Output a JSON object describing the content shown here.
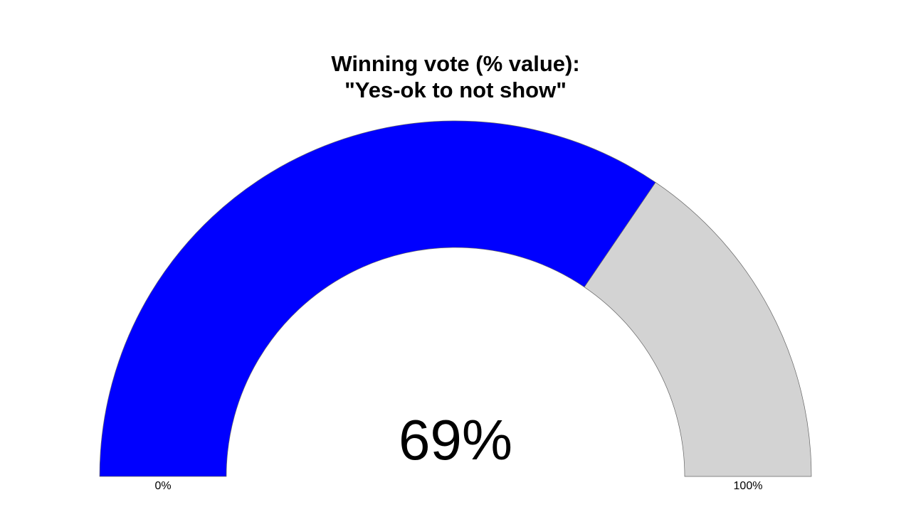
{
  "chart_data": {
    "type": "gauge",
    "title": [
      "Winning vote (% value):",
      "\"Yes-ok to not show\""
    ],
    "value": 69,
    "value_label": "69%",
    "color": "#0000ff",
    "track_color": "#d3d3d3",
    "ylim": [
      0,
      100
    ],
    "yticks": [
      {
        "value": 0,
        "label": "0%"
      },
      {
        "value": 100,
        "label": "100%"
      }
    ]
  }
}
